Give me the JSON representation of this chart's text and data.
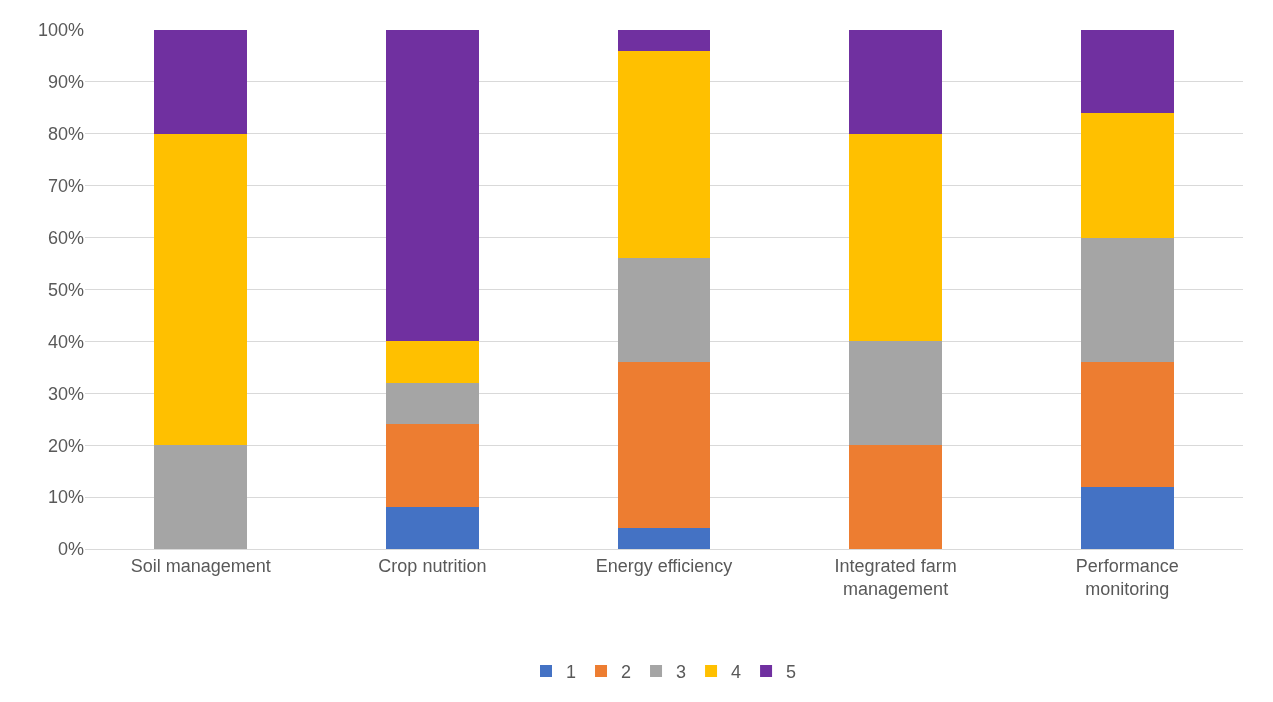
{
  "chart_data": {
    "type": "bar",
    "stacked": true,
    "categories": [
      "Soil management",
      "Crop nutrition",
      "Energy efficiency",
      "Integrated farm management",
      "Performance monitoring"
    ],
    "series": [
      {
        "name": "1",
        "color": "#4472c4",
        "values": [
          0,
          8,
          4,
          0,
          12
        ]
      },
      {
        "name": "2",
        "color": "#ed7d31",
        "values": [
          0,
          16,
          32,
          20,
          24
        ]
      },
      {
        "name": "3",
        "color": "#a5a5a5",
        "values": [
          20,
          8,
          20,
          20,
          24
        ]
      },
      {
        "name": "4",
        "color": "#ffc000",
        "values": [
          60,
          8,
          40,
          40,
          24
        ]
      },
      {
        "name": "5",
        "color": "#7030a0",
        "values": [
          20,
          60,
          4,
          20,
          16
        ]
      }
    ],
    "ylim": [
      0,
      100
    ],
    "yticks": [
      {
        "value": 0,
        "label": "0%"
      },
      {
        "value": 10,
        "label": "10%"
      },
      {
        "value": 20,
        "label": "20%"
      },
      {
        "value": 30,
        "label": "30%"
      },
      {
        "value": 40,
        "label": "40%"
      },
      {
        "value": 50,
        "label": "50%"
      },
      {
        "value": 60,
        "label": "60%"
      },
      {
        "value": 70,
        "label": "70%"
      },
      {
        "value": 80,
        "label": "80%"
      },
      {
        "value": 90,
        "label": "90%"
      },
      {
        "value": 100,
        "label": "100%"
      }
    ],
    "grid": "y",
    "legend": "bottom"
  }
}
